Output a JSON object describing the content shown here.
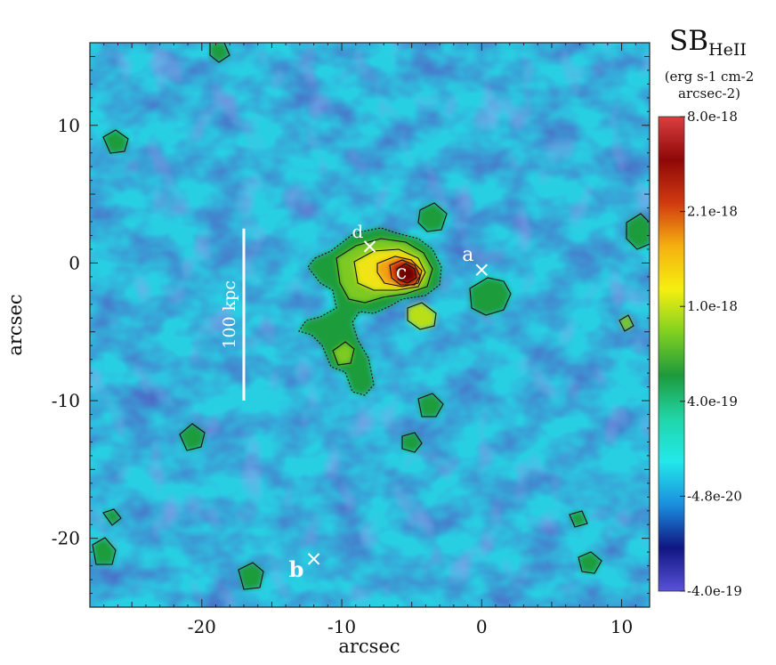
{
  "chart_data": {
    "type": "heatmap",
    "title": "",
    "colorbar": {
      "title": "SB",
      "title_subscript": "HeII",
      "units_line1": "(erg s-1 cm-2",
      "units_line2": "arcsec-2)",
      "ticks": [
        "8.0e-18",
        "2.1e-18",
        "1.0e-18",
        "4.0e-19",
        "-4.8e-20",
        "-4.0e-19"
      ],
      "colors": [
        "#d93f3f",
        "#8f0808",
        "#d13a10",
        "#f5b010",
        "#f5ef10",
        "#7fd020",
        "#1e9a3c",
        "#20d6a8",
        "#22e8ea",
        "#1a8ede",
        "#101682",
        "#5a52d8"
      ]
    },
    "xlabel": "arcsec",
    "ylabel": "arcsec",
    "xlim": [
      -28,
      12
    ],
    "ylim": [
      -25,
      16
    ],
    "xticks": [
      "-20",
      "-10",
      "0",
      "10"
    ],
    "yticks": [
      "10",
      "0",
      "-10",
      "-20"
    ],
    "scalebar": {
      "label": "100 kpc",
      "x": -17,
      "y_from": -10,
      "y_to": 2.5
    },
    "markers": [
      {
        "label": "a",
        "x": 0,
        "y": -0.5,
        "show_cross": true
      },
      {
        "label": "b",
        "x": -12,
        "y": -21.5,
        "show_cross": true
      },
      {
        "label": "c",
        "x": -5.5,
        "y": -0.5,
        "show_cross": false
      },
      {
        "label": "d",
        "x": -8,
        "y": 1.2,
        "show_cross": true
      }
    ]
  }
}
